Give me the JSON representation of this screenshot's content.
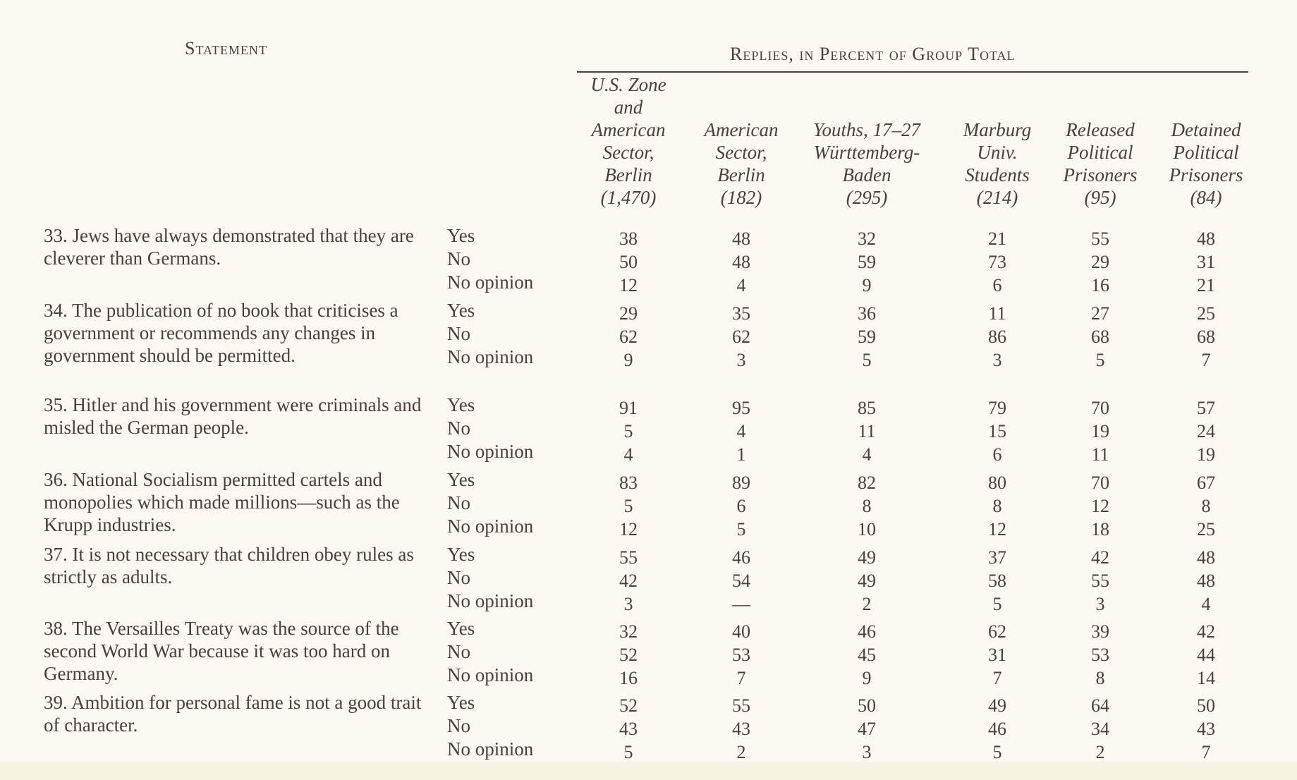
{
  "header": {
    "statement": "Statement",
    "replies": "Replies, in Percent of Group Total"
  },
  "columns": [
    {
      "lines": [
        "U.S. Zone",
        "and",
        "American",
        "Sector,",
        "Berlin"
      ],
      "n": "(1,470)"
    },
    {
      "lines": [
        "American",
        "Sector,",
        "Berlin"
      ],
      "n": "(182)"
    },
    {
      "lines": [
        "Youths, 17–27",
        "Württemberg-",
        "Baden"
      ],
      "n": "(295)"
    },
    {
      "lines": [
        "Marburg",
        "Univ.",
        "Students"
      ],
      "n": "(214)"
    },
    {
      "lines": [
        "Released",
        "Political",
        "Prisoners"
      ],
      "n": "(95)"
    },
    {
      "lines": [
        "Detained",
        "Political",
        "Prisoners"
      ],
      "n": "(84)"
    }
  ],
  "reply_labels": [
    "Yes",
    "No",
    "No opinion"
  ],
  "questions": [
    {
      "text": "33. Jews have always demonstrated that they are cleverer than Germans.",
      "rows": [
        [
          "38",
          "48",
          "32",
          "21",
          "55",
          "48"
        ],
        [
          "50",
          "48",
          "59",
          "73",
          "29",
          "31"
        ],
        [
          "12",
          "4",
          "9",
          "6",
          "16",
          "21"
        ]
      ]
    },
    {
      "text": "34. The publication of no book that criticises a government or recommends any changes in government should be permitted.",
      "rows": [
        [
          "29",
          "35",
          "36",
          "11",
          "27",
          "25"
        ],
        [
          "62",
          "62",
          "59",
          "86",
          "68",
          "68"
        ],
        [
          "9",
          "3",
          "5",
          "3",
          "5",
          "7"
        ]
      ]
    },
    {
      "text": "35. Hitler and his government were criminals and misled the German people.",
      "rows": [
        [
          "91",
          "95",
          "85",
          "79",
          "70",
          "57"
        ],
        [
          "5",
          "4",
          "11",
          "15",
          "19",
          "24"
        ],
        [
          "4",
          "1",
          "4",
          "6",
          "11",
          "19"
        ]
      ]
    },
    {
      "text": "36. National Socialism permitted cartels and monopolies which made millions—such as the Krupp industries.",
      "rows": [
        [
          "83",
          "89",
          "82",
          "80",
          "70",
          "67"
        ],
        [
          "5",
          "6",
          "8",
          "8",
          "12",
          "8"
        ],
        [
          "12",
          "5",
          "10",
          "12",
          "18",
          "25"
        ]
      ]
    },
    {
      "text": "37. It is not necessary that children obey rules as strictly as adults.",
      "rows": [
        [
          "55",
          "46",
          "49",
          "37",
          "42",
          "48"
        ],
        [
          "42",
          "54",
          "49",
          "58",
          "55",
          "48"
        ],
        [
          "3",
          "—",
          "2",
          "5",
          "3",
          "4"
        ]
      ]
    },
    {
      "text": "38. The Versailles Treaty was the source of the second World War because it was too hard on Germany.",
      "rows": [
        [
          "32",
          "40",
          "46",
          "62",
          "39",
          "42"
        ],
        [
          "52",
          "53",
          "45",
          "31",
          "53",
          "44"
        ],
        [
          "16",
          "7",
          "9",
          "7",
          "8",
          "14"
        ]
      ]
    },
    {
      "text": "39. Ambition for personal fame is not a good trait of character.",
      "rows": [
        [
          "52",
          "55",
          "50",
          "49",
          "64",
          "50"
        ],
        [
          "43",
          "43",
          "47",
          "46",
          "34",
          "43"
        ],
        [
          "5",
          "2",
          "3",
          "5",
          "2",
          "7"
        ]
      ]
    }
  ]
}
